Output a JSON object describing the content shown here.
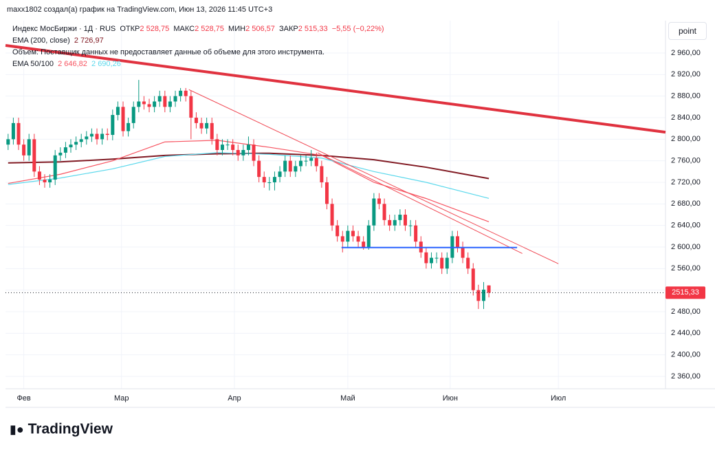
{
  "header": {
    "credit": "maxx1802 создал(а) график на TradingView.com, Июн 13, 2026 11:45 UTC+3",
    "button": "point",
    "logo": "TradingView"
  },
  "chart_data": {
    "type": "candlestick",
    "legend": {
      "symbol": "Индекс МосБиржи · 1Д · RUS",
      "open_label": "ОТКР",
      "open": "2 528,75",
      "high_label": "МАКС",
      "high": "2 528,75",
      "low_label": "МИН",
      "low": "2 506,57",
      "close_label": "ЗАКР",
      "close": "2 515,33",
      "change": "−5,55 (−0,22%)",
      "volume_note": "Объем: Поставщик данных не предоставляет данные об объеме для этого инструмента.",
      "ema_group_label": "EMA 50/100"
    },
    "up_color": "#089981",
    "down_color": "#f23645",
    "open": [
      2790,
      2800,
      2830,
      2790,
      2770,
      2800,
      2740,
      2725,
      2720,
      2725,
      2770,
      2775,
      2785,
      2790,
      2795,
      2800,
      2805,
      2810,
      2800,
      2810,
      2808,
      2845,
      2860,
      2815,
      2830,
      2860,
      2870,
      2865,
      2860,
      2870,
      2880,
      2860,
      2870,
      2880,
      2890,
      2880,
      2840,
      2830,
      2820,
      2830,
      2800,
      2780,
      2790,
      2790,
      2780,
      2770,
      2780,
      2790,
      2760,
      2730,
      2720,
      2720,
      2730,
      2740,
      2760,
      2740,
      2750,
      2760,
      2760,
      2765,
      2750,
      2720,
      2680,
      2640,
      2620,
      2610,
      2630,
      2620,
      2610,
      2600,
      2640,
      2690,
      2680,
      2650,
      2640,
      2650,
      2660,
      2640,
      2640,
      2610,
      2590,
      2570,
      2580,
      2580,
      2560,
      2580,
      2620,
      2600,
      2580,
      2560,
      2520,
      2500,
      2528.75
    ],
    "high": [
      2810,
      2840,
      2840,
      2800,
      2810,
      2810,
      2750,
      2735,
      2735,
      2780,
      2785,
      2795,
      2800,
      2805,
      2810,
      2815,
      2820,
      2820,
      2820,
      2820,
      2855,
      2870,
      2870,
      2840,
      2870,
      2910,
      2880,
      2875,
      2880,
      2890,
      2890,
      2880,
      2890,
      2895,
      2895,
      2890,
      2850,
      2840,
      2840,
      2840,
      2810,
      2800,
      2800,
      2800,
      2790,
      2790,
      2805,
      2800,
      2770,
      2740,
      2730,
      2740,
      2750,
      2770,
      2770,
      2760,
      2770,
      2770,
      2780,
      2775,
      2760,
      2730,
      2690,
      2650,
      2630,
      2640,
      2640,
      2630,
      2620,
      2650,
      2700,
      2700,
      2690,
      2660,
      2660,
      2670,
      2670,
      2650,
      2650,
      2620,
      2600,
      2590,
      2590,
      2590,
      2590,
      2630,
      2630,
      2610,
      2590,
      2570,
      2530,
      2535,
      2528.75
    ],
    "low": [
      2780,
      2790,
      2780,
      2760,
      2760,
      2730,
      2715,
      2710,
      2710,
      2715,
      2760,
      2765,
      2775,
      2780,
      2785,
      2790,
      2795,
      2790,
      2790,
      2798,
      2798,
      2835,
      2805,
      2805,
      2820,
      2850,
      2855,
      2850,
      2850,
      2860,
      2850,
      2850,
      2860,
      2870,
      2870,
      2800,
      2820,
      2810,
      2810,
      2790,
      2770,
      2770,
      2780,
      2770,
      2760,
      2760,
      2770,
      2750,
      2720,
      2710,
      2705,
      2705,
      2720,
      2730,
      2730,
      2730,
      2740,
      2750,
      2750,
      2740,
      2710,
      2670,
      2630,
      2610,
      2590,
      2600,
      2610,
      2600,
      2595,
      2595,
      2630,
      2670,
      2640,
      2630,
      2630,
      2640,
      2630,
      2620,
      2600,
      2580,
      2560,
      2560,
      2570,
      2550,
      2550,
      2570,
      2590,
      2570,
      2550,
      2510,
      2485,
      2485,
      2506.57
    ],
    "close": [
      2800,
      2830,
      2790,
      2770,
      2800,
      2740,
      2725,
      2720,
      2725,
      2770,
      2775,
      2785,
      2790,
      2795,
      2800,
      2805,
      2810,
      2800,
      2810,
      2808,
      2845,
      2860,
      2815,
      2830,
      2860,
      2870,
      2865,
      2860,
      2870,
      2880,
      2860,
      2870,
      2880,
      2890,
      2880,
      2840,
      2830,
      2820,
      2830,
      2800,
      2780,
      2790,
      2790,
      2780,
      2770,
      2780,
      2790,
      2760,
      2730,
      2720,
      2720,
      2730,
      2740,
      2760,
      2740,
      2750,
      2760,
      2760,
      2765,
      2750,
      2720,
      2680,
      2640,
      2620,
      2610,
      2630,
      2620,
      2610,
      2600,
      2640,
      2690,
      2680,
      2650,
      2640,
      2650,
      2660,
      2640,
      2640,
      2610,
      2590,
      2570,
      2580,
      2580,
      2560,
      2580,
      2620,
      2600,
      2580,
      2560,
      2520,
      2500,
      2520.88,
      2515.33
    ],
    "overlays": [
      {
        "name": "EMA (200, close)",
        "value_label": "2 726,97",
        "color": "#801922",
        "x": [
          0,
          10,
          20,
          30,
          40,
          50,
          60,
          70,
          80,
          92
        ],
        "values": [
          2756,
          2758,
          2763,
          2770,
          2773,
          2774,
          2770,
          2762,
          2748,
          2726.97
        ]
      },
      {
        "value_label": "2 646,82",
        "color": "#f7525f",
        "x": [
          0,
          10,
          20,
          30,
          40,
          50,
          60,
          70,
          80,
          92
        ],
        "values": [
          2718,
          2735,
          2760,
          2795,
          2798,
          2785,
          2770,
          2720,
          2690,
          2646.82
        ]
      },
      {
        "value_label": "2 690,26",
        "color": "#5ad8ec",
        "x": [
          0,
          10,
          20,
          30,
          40,
          50,
          60,
          70,
          80,
          92
        ],
        "values": [
          2716,
          2728,
          2745,
          2768,
          2775,
          2772,
          2765,
          2740,
          2720,
          2690.26
        ]
      }
    ],
    "drawings": [
      {
        "color": "#e0323f",
        "bold": true,
        "x": [
          -0.5,
          125.8
        ],
        "values": [
          2974,
          2813
        ]
      },
      {
        "color": "#f04a55",
        "bold": false,
        "x": [
          34.6,
          105.3
        ],
        "values": [
          2892,
          2569
        ]
      },
      {
        "color": "#f04a55",
        "bold": false,
        "x": [
          59.2,
          98.4
        ],
        "values": [
          2775,
          2588
        ]
      },
      {
        "color": "#2962ff",
        "bold": true,
        "x": [
          63.8,
          97.4
        ],
        "values": [
          2599,
          2599
        ]
      }
    ],
    "last_price": 2515.33,
    "last_price_label": "2515,33",
    "xlim": [
      -0.5,
      125.8
    ],
    "ylim": [
      2337,
      3020
    ],
    "xticks": [
      {
        "value": 3,
        "label": "Фев"
      },
      {
        "value": 21.7,
        "label": "Мар"
      },
      {
        "value": 43.3,
        "label": "Апр"
      },
      {
        "value": 65,
        "label": "Май"
      },
      {
        "value": 84.6,
        "label": "Июн"
      },
      {
        "value": 105.3,
        "label": "Июл"
      }
    ],
    "yticks": [
      {
        "value": 2360,
        "label": "2 360,00"
      },
      {
        "value": 2400,
        "label": "2 400,00"
      },
      {
        "value": 2440,
        "label": "2 440,00"
      },
      {
        "value": 2480,
        "label": "2 480,00"
      },
      {
        "value": 2520,
        "label": "2 520,00"
      },
      {
        "value": 2560,
        "label": "2 560,00"
      },
      {
        "value": 2600,
        "label": "2 600,00"
      },
      {
        "value": 2640,
        "label": "2 640,00"
      },
      {
        "value": 2680,
        "label": "2 680,00"
      },
      {
        "value": 2720,
        "label": "2 720,00"
      },
      {
        "value": 2760,
        "label": "2 760,00"
      },
      {
        "value": 2800,
        "label": "2 800,00"
      },
      {
        "value": 2840,
        "label": "2 840,00"
      },
      {
        "value": 2880,
        "label": "2 880,00"
      },
      {
        "value": 2920,
        "label": "2 920,00"
      },
      {
        "value": 2960,
        "label": "2 960,00"
      }
    ],
    "grid": true
  }
}
